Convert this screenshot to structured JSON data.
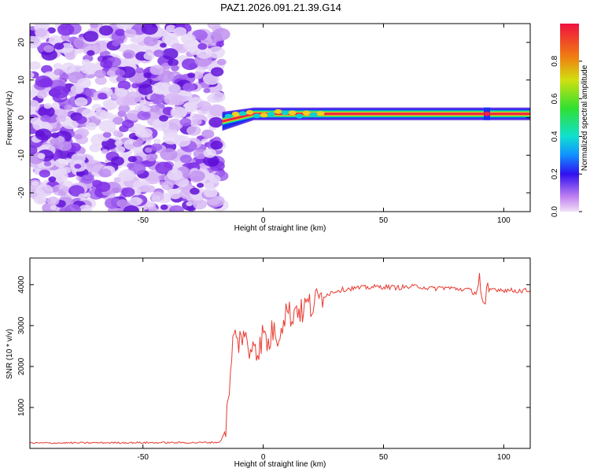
{
  "title": "PAZ1.2026.091.21.39.G14",
  "colors": {
    "signal": "#e83a30",
    "axis": "#000000",
    "noise": "#8a3cf0",
    "band_core": "#f0203a",
    "band_mid": "#30e060",
    "band_edge": "#2020f0"
  },
  "chart_data": [
    {
      "type": "heatmap",
      "title": "PAZ1.2026.091.21.39.G14",
      "xlabel": "Height of straight line (km)",
      "ylabel": "Frequency (Hz)",
      "xlim": [
        -97,
        111
      ],
      "ylim": [
        -25,
        25
      ],
      "xticks": [
        -50,
        0,
        50,
        100
      ],
      "yticks": [
        -20,
        -10,
        0,
        10,
        20
      ],
      "noise_region": {
        "x_from": -97,
        "x_to": -17,
        "y_from": -25,
        "y_to": 25
      },
      "signal_band": {
        "x_from": -17,
        "x_to": 111,
        "center_hz_start": -1,
        "center_hz_end": 1,
        "gap_at_km": 93
      },
      "colorbar": {
        "label": "Normalized spectral amplitude",
        "range": [
          0,
          1
        ],
        "ticks": [
          "0.0",
          "0.2",
          "0.4",
          "0.6",
          "0.8"
        ],
        "tick_values": [
          0,
          0.2,
          0.4,
          0.6,
          0.8
        ]
      }
    },
    {
      "type": "line",
      "xlabel": "Height of straight line (km)",
      "ylabel": "SNR (10 * v/v)",
      "xlim": [
        -97,
        111
      ],
      "ylim": [
        0,
        4650
      ],
      "xticks": [
        -50,
        0,
        50,
        100
      ],
      "yticks": [
        1000,
        2000,
        3000,
        4000
      ],
      "x": [
        -97,
        -60,
        -30,
        -18,
        -16,
        -14,
        -13,
        -12,
        -10,
        -8,
        -6,
        -4,
        -2,
        0,
        2,
        4,
        6,
        8,
        9,
        10,
        12,
        14,
        16,
        18,
        20,
        22,
        24,
        26,
        28,
        30,
        35,
        40,
        45,
        50,
        55,
        60,
        65,
        70,
        75,
        80,
        85,
        88,
        90,
        91,
        92,
        93,
        95,
        100,
        105,
        111
      ],
      "values": [
        130,
        140,
        140,
        150,
        400,
        1300,
        2500,
        2700,
        2600,
        2900,
        2200,
        2750,
        2300,
        2850,
        2500,
        2900,
        2750,
        3100,
        3300,
        3400,
        3200,
        3500,
        3300,
        3550,
        3450,
        3600,
        3700,
        3750,
        3800,
        3850,
        3900,
        3920,
        3940,
        3950,
        3930,
        3940,
        3960,
        3900,
        3930,
        3900,
        3880,
        3800,
        4200,
        3500,
        3300,
        3800,
        3900,
        3870,
        3850,
        3860
      ]
    }
  ]
}
